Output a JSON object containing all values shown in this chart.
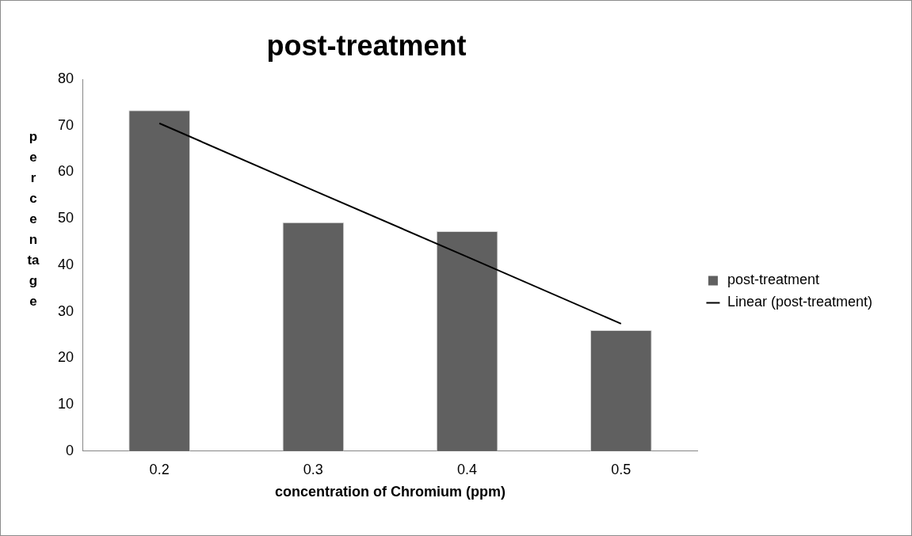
{
  "chart_data": {
    "type": "bar",
    "title": "post-treatment",
    "xlabel": "concentration of Chromium (ppm)",
    "ylabel": "percentage",
    "categories": [
      "0.2",
      "0.3",
      "0.4",
      "0.5"
    ],
    "series": [
      {
        "name": "post-treatment",
        "color": "#606060",
        "values": [
          73.3,
          49.2,
          47.3,
          26.0
        ]
      },
      {
        "name": "Linear (post-treatment)",
        "type": "line",
        "color": "#000000",
        "values": [
          70.5,
          56.1,
          41.8,
          27.4
        ]
      }
    ],
    "ylim": [
      0,
      80
    ],
    "yticks": [
      0,
      10,
      20,
      30,
      40,
      50,
      60,
      70,
      80
    ],
    "grid": false,
    "legend": "right"
  }
}
